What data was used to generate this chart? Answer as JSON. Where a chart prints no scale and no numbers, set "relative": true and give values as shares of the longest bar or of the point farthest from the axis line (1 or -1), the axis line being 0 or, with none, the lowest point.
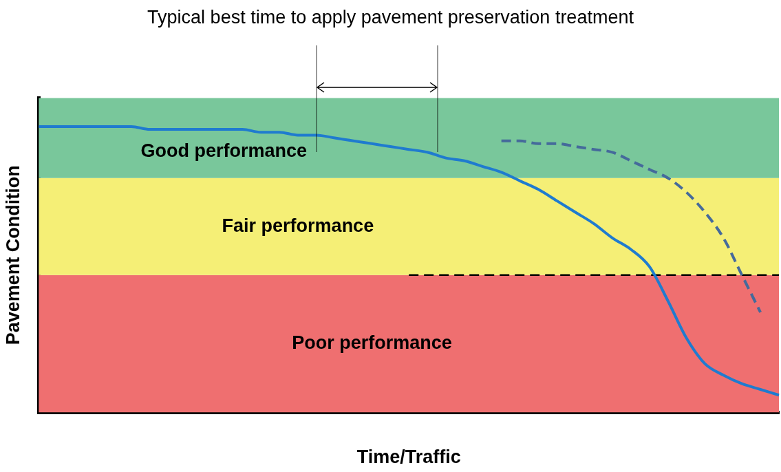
{
  "chart_data": {
    "type": "line",
    "relative": true,
    "title": "Typical best time to apply pavement preservation treatment",
    "xlabel": "Time/Traffic",
    "ylabel": "Pavement Condition",
    "categories": [
      null,
      null,
      null,
      null,
      null,
      null,
      null,
      null,
      null,
      null,
      null,
      null,
      null,
      null,
      null,
      null,
      null,
      null,
      null,
      null,
      null,
      null,
      null,
      null,
      null,
      null,
      null,
      null,
      null,
      null,
      null,
      null,
      null,
      null,
      null,
      null,
      null,
      null,
      null,
      null,
      null
    ],
    "series": [
      {
        "color": "#1f7bcf",
        "line_style": "solid",
        "values": [
          1,
          1,
          1,
          1,
          1,
          1,
          0.99,
          0.99,
          0.99,
          0.99,
          0.99,
          0.99,
          0.98,
          0.98,
          0.97,
          0.97,
          0.96,
          0.95,
          0.94,
          0.93,
          0.92,
          0.91,
          0.89,
          0.88,
          0.86,
          0.84,
          0.81,
          0.78,
          0.74,
          0.7,
          0.66,
          0.61,
          0.57,
          0.51,
          0.39,
          0.26,
          0.17,
          0.13,
          0.1,
          0.08,
          0.06
        ]
      },
      {
        "color": "#456a9b",
        "line_style": "dashed",
        "values": [
          null,
          null,
          null,
          null,
          null,
          null,
          null,
          null,
          null,
          null,
          null,
          null,
          null,
          null,
          null,
          null,
          null,
          null,
          null,
          null,
          null,
          null,
          null,
          null,
          null,
          0.95,
          0.95,
          0.94,
          0.94,
          0.93,
          0.92,
          0.91,
          0.88,
          0.85,
          0.82,
          0.77,
          0.7,
          0.61,
          0.48,
          0.35,
          null
        ]
      },
      {
        "color": "#000000",
        "line_style": "dashed",
        "values": [
          null,
          null,
          null,
          null,
          null,
          null,
          null,
          null,
          null,
          null,
          null,
          null,
          null,
          null,
          null,
          null,
          null,
          null,
          null,
          null,
          0.48,
          0.48,
          0.48,
          0.48,
          0.48,
          0.48,
          0.48,
          0.48,
          0.48,
          0.48,
          0.48,
          0.48,
          0.48,
          0.48,
          0.48,
          0.48,
          0.48,
          0.48,
          0.48,
          0.48,
          0.48
        ]
      }
    ],
    "bands": [
      {
        "axis": "y",
        "from": 0,
        "to": 0.48,
        "label": "Poor performance",
        "color": "#ef6f70"
      },
      {
        "axis": "y",
        "from": 0.48,
        "to": 0.82,
        "label": "Fair performance",
        "color": "#f5ef76"
      },
      {
        "axis": "y",
        "from": 0.82,
        "to": 1.1,
        "label": "Good performance",
        "color": "#79c79b"
      }
    ],
    "legend": false,
    "grid": false,
    "marker": "none"
  }
}
